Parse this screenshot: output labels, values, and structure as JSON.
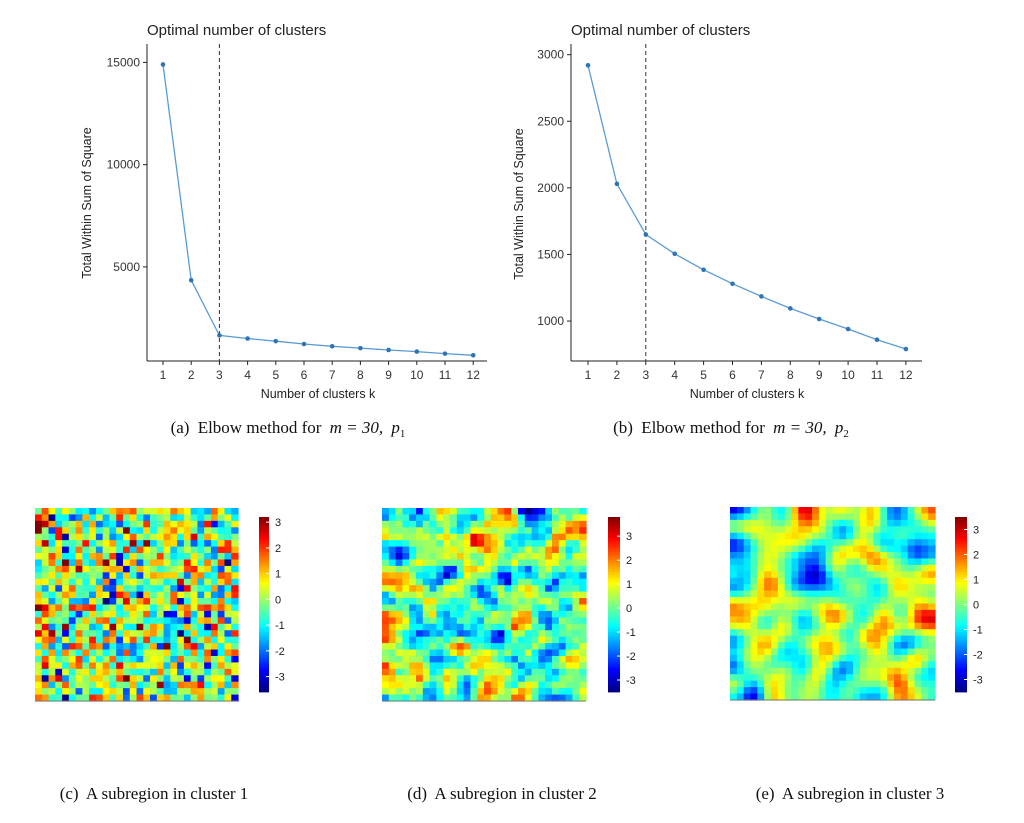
{
  "chart_data": [
    {
      "type": "line",
      "title": "Optimal number of clusters",
      "xlabel": "Number of clusters k",
      "ylabel": "Total Within Sum of Square",
      "x": [
        1,
        2,
        3,
        4,
        5,
        6,
        7,
        8,
        9,
        10,
        11,
        12
      ],
      "xticks": [
        "1",
        "2",
        "3",
        "4",
        "5",
        "6",
        "7",
        "8",
        "9",
        "10",
        "11",
        "12"
      ],
      "yticks": [
        5000,
        10000,
        15000
      ],
      "ylim": [
        400,
        15900
      ],
      "series": [
        {
          "values": [
            14900,
            4350,
            1650,
            1500,
            1370,
            1230,
            1120,
            1030,
            940,
            860,
            760,
            680
          ]
        }
      ],
      "vline_x": 3,
      "line_color": "#5b9bd5",
      "marker_color": "#2e75b6",
      "grid": false,
      "caption": {
        "label": "(a)",
        "text": "Elbow method for",
        "math": "m = 30,",
        "var": "p",
        "sub": "1"
      }
    },
    {
      "type": "line",
      "title": "Optimal number of clusters",
      "xlabel": "Number of clusters k",
      "ylabel": "Total Within Sum of Square",
      "x": [
        1,
        2,
        3,
        4,
        5,
        6,
        7,
        8,
        9,
        10,
        11,
        12
      ],
      "xticks": [
        "1",
        "2",
        "3",
        "4",
        "5",
        "6",
        "7",
        "8",
        "9",
        "10",
        "11",
        "12"
      ],
      "yticks": [
        1000,
        1500,
        2000,
        2500,
        3000
      ],
      "ylim": [
        700,
        3080
      ],
      "series": [
        {
          "values": [
            2920,
            2030,
            1650,
            1505,
            1385,
            1280,
            1185,
            1095,
            1015,
            940,
            860,
            790
          ]
        }
      ],
      "vline_x": 3,
      "line_color": "#5b9bd5",
      "marker_color": "#2e75b6",
      "grid": false,
      "caption": {
        "label": "(b)",
        "text": "Elbow method for",
        "math": "m = 30,",
        "var": "p",
        "sub": "2"
      }
    },
    {
      "type": "heatmap",
      "grid_size": [
        30,
        30
      ],
      "seed": 11,
      "smoothness": 0,
      "contrast": 1.35,
      "colorbar_range": [
        -3.6,
        3.2
      ],
      "colorbar_ticks": [
        -3,
        -2,
        -1,
        0,
        1,
        2,
        3
      ],
      "colormap": [
        "#00007f",
        "#0000ff",
        "#007fff",
        "#00ffff",
        "#7fff7f",
        "#ffff00",
        "#ff7f00",
        "#ff0000",
        "#7f0000"
      ],
      "caption": {
        "label": "(c)",
        "text": "A subregion in cluster 1"
      }
    },
    {
      "type": "heatmap",
      "grid_size": [
        30,
        30
      ],
      "seed": 23,
      "smoothness": 1,
      "contrast": 1.05,
      "colorbar_range": [
        -3.5,
        3.8
      ],
      "colorbar_ticks": [
        -3,
        -2,
        -1,
        0,
        1,
        2,
        3
      ],
      "colormap": [
        "#00007f",
        "#0000ff",
        "#007fff",
        "#00ffff",
        "#7fff7f",
        "#ffff00",
        "#ff7f00",
        "#ff0000",
        "#7f0000"
      ],
      "caption": {
        "label": "(d)",
        "text": "A subregion in cluster 2"
      }
    },
    {
      "type": "heatmap",
      "grid_size": [
        30,
        30
      ],
      "seed": 47,
      "smoothness": 3,
      "contrast": 0.95,
      "colorbar_range": [
        -3.5,
        3.5
      ],
      "colorbar_ticks": [
        -3,
        -2,
        -1,
        0,
        1,
        2,
        3
      ],
      "colormap": [
        "#00007f",
        "#0000ff",
        "#007fff",
        "#00ffff",
        "#7fff7f",
        "#ffff00",
        "#ff7f00",
        "#ff0000",
        "#7f0000"
      ],
      "caption": {
        "label": "(e)",
        "text": "A subregion in cluster 3"
      }
    }
  ]
}
